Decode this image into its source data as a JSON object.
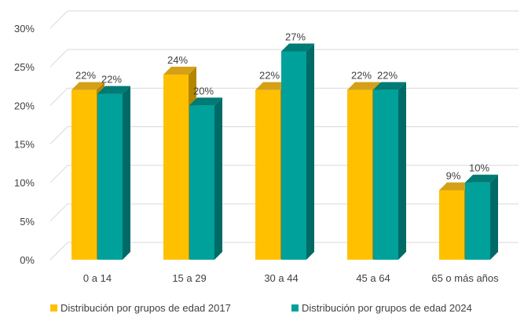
{
  "chart_data": {
    "type": "bar",
    "categories": [
      "0 a 14",
      "15 a 29",
      "30 a 44",
      "45 a 64",
      "65 o más años"
    ],
    "series": [
      {
        "name": "Distribución por grupos de edad 2017",
        "values": [
          22,
          24,
          22,
          22,
          9
        ],
        "labels": [
          "22%",
          "24%",
          "22%",
          "22%",
          "9%"
        ],
        "color": "#FFC000",
        "top_color": "#D4A017",
        "side_color": "#B38600"
      },
      {
        "name": "Distribución por grupos de edad 2024",
        "values": [
          21.5,
          20,
          27,
          22,
          10
        ],
        "labels": [
          "22%",
          "20%",
          "27%",
          "22%",
          "10%"
        ],
        "color": "#00A19A",
        "top_color": "#007A74",
        "side_color": "#006B66"
      }
    ],
    "yticks": [
      "0%",
      "5%",
      "10%",
      "15%",
      "20%",
      "25%",
      "30%"
    ],
    "ylim": [
      0,
      30
    ],
    "grid": true,
    "legend": "bottom",
    "title": "",
    "xlabel": "",
    "ylabel": ""
  }
}
